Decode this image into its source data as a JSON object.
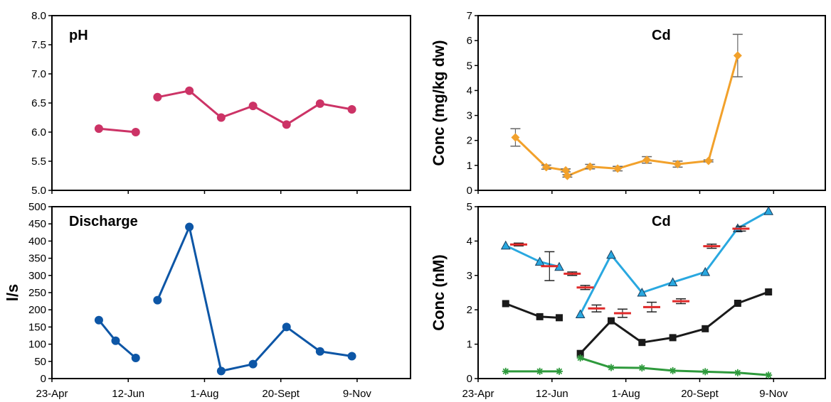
{
  "x_ticks": [
    "23-Apr",
    "12-Jun",
    "1-Aug",
    "20-Sept",
    "9-Nov"
  ],
  "chart_data": [
    {
      "id": "ph",
      "type": "line",
      "title": "pH",
      "xlabel": "",
      "ylabel": "",
      "ylim": [
        5.0,
        8.0
      ],
      "yticks": [
        "5.0",
        "5.5",
        "6.0",
        "6.5",
        "7.0",
        "7.5",
        "8.0"
      ],
      "x_date_range": [
        "2000-04-23",
        "2000-11-23"
      ],
      "grid": false,
      "series": [
        {
          "color": "#cc3366",
          "marker": "circle",
          "segments": [
            [
              [
                "2000-05-21",
                6.06
              ],
              [
                "2000-06-12",
                6.0
              ]
            ],
            [
              [
                "2000-06-25",
                6.6
              ],
              [
                "2000-07-14",
                6.71
              ],
              [
                "2000-08-02",
                6.25
              ],
              [
                "2000-08-21",
                6.45
              ],
              [
                "2000-09-10",
                6.13
              ],
              [
                "2000-09-30",
                6.49
              ],
              [
                "2000-10-19",
                6.39
              ]
            ]
          ]
        }
      ]
    },
    {
      "id": "discharge",
      "type": "line",
      "title": "Discharge",
      "xlabel": "",
      "ylabel": "l/s",
      "ylim": [
        0,
        500
      ],
      "yticks": [
        "0",
        "50",
        "100",
        "150",
        "200",
        "250",
        "300",
        "350",
        "400",
        "450",
        "500"
      ],
      "x_date_range": [
        "2000-04-23",
        "2000-11-23"
      ],
      "grid": false,
      "series": [
        {
          "color": "#0d56a6",
          "marker": "circle",
          "segments": [
            [
              [
                "2000-05-21",
                170
              ],
              [
                "2000-05-31",
                110
              ],
              [
                "2000-06-12",
                60
              ]
            ],
            [
              [
                "2000-06-25",
                228
              ],
              [
                "2000-07-14",
                441
              ],
              [
                "2000-08-02",
                22
              ],
              [
                "2000-08-21",
                42
              ],
              [
                "2000-09-10",
                150
              ],
              [
                "2000-09-30",
                79
              ],
              [
                "2000-10-19",
                65
              ]
            ]
          ]
        }
      ]
    },
    {
      "id": "cd-solid",
      "type": "line",
      "title": "Cd",
      "xlabel": "",
      "ylabel": "Conc (mg/kg dw)",
      "ylim": [
        0,
        7
      ],
      "yticks": [
        "0",
        "1",
        "2",
        "3",
        "4",
        "5",
        "6",
        "7"
      ],
      "x_date_range": [
        "2000-04-23",
        "2000-11-23"
      ],
      "grid": false,
      "series": [
        {
          "color": "#f2a12b",
          "marker": "diamond",
          "segments": [
            [
              [
                "2000-05-16",
                2.12,
                0.35
              ],
              [
                "2000-06-04",
                0.93,
                0.08
              ],
              [
                "2000-06-16",
                0.8,
                0.06
              ],
              [
                "2000-06-17",
                0.58,
                0.05
              ],
              [
                "2000-07-01",
                0.95,
                0.09
              ],
              [
                "2000-07-18",
                0.87,
                0.09
              ],
              [
                "2000-08-05",
                1.22,
                0.13
              ],
              [
                "2000-08-24",
                1.05,
                0.12
              ],
              [
                "2000-09-12",
                1.18,
                0.04
              ],
              [
                "2000-09-30",
                5.4,
                0.85
              ]
            ]
          ]
        }
      ]
    },
    {
      "id": "cd-dissolved",
      "type": "line",
      "title": "Cd",
      "xlabel": "",
      "ylabel": "Conc (nM)",
      "ylim": [
        0,
        5
      ],
      "yticks": [
        "0",
        "1",
        "2",
        "3",
        "4",
        "5"
      ],
      "x_date_range": [
        "2000-04-23",
        "2000-11-23"
      ],
      "grid": false,
      "series": [
        {
          "color": "#29a8e0",
          "marker": "triangle",
          "segments": [
            [
              [
                "2000-05-10",
                3.87
              ],
              [
                "2000-05-31",
                3.4
              ],
              [
                "2000-06-12",
                3.25
              ]
            ],
            [
              [
                "2000-06-25",
                1.87
              ],
              [
                "2000-07-14",
                3.6
              ],
              [
                "2000-08-02",
                2.5
              ],
              [
                "2000-08-21",
                2.8
              ],
              [
                "2000-09-10",
                3.1
              ],
              [
                "2000-09-30",
                4.37
              ],
              [
                "2000-10-19",
                4.87
              ]
            ]
          ]
        },
        {
          "color": "#1a1a1a",
          "marker": "square",
          "segments": [
            [
              [
                "2000-05-10",
                2.18
              ],
              [
                "2000-05-31",
                1.8
              ],
              [
                "2000-06-12",
                1.77
              ]
            ],
            [
              [
                "2000-06-25",
                0.73
              ],
              [
                "2000-07-14",
                1.68
              ],
              [
                "2000-08-02",
                1.05
              ],
              [
                "2000-08-21",
                1.19
              ],
              [
                "2000-09-10",
                1.45
              ],
              [
                "2000-09-30",
                2.19
              ],
              [
                "2000-10-19",
                2.52
              ]
            ]
          ]
        },
        {
          "color": "#2e9a3c",
          "marker": "star",
          "segments": [
            [
              [
                "2000-05-10",
                0.21
              ],
              [
                "2000-05-31",
                0.21
              ],
              [
                "2000-06-12",
                0.21
              ]
            ],
            [
              [
                "2000-06-25",
                0.6
              ],
              [
                "2000-07-14",
                0.32
              ],
              [
                "2000-08-02",
                0.31
              ],
              [
                "2000-08-21",
                0.23
              ],
              [
                "2000-09-10",
                0.2
              ],
              [
                "2000-09-30",
                0.17
              ],
              [
                "2000-10-19",
                0.1
              ]
            ]
          ]
        }
      ],
      "bars": {
        "color": "#e02a2a",
        "points": [
          [
            "2000-05-18",
            3.9,
            0.04
          ],
          [
            "2000-06-06",
            3.27,
            0.42
          ],
          [
            "2000-06-20",
            3.05,
            0.05
          ],
          [
            "2000-06-28",
            2.65,
            0.06
          ],
          [
            "2000-07-05",
            2.04,
            0.1
          ],
          [
            "2000-07-21",
            1.9,
            0.12
          ],
          [
            "2000-08-08",
            2.08,
            0.14
          ],
          [
            "2000-08-26",
            2.25,
            0.07
          ],
          [
            "2000-09-14",
            3.85,
            0.06
          ],
          [
            "2000-10-02",
            4.36,
            0.07
          ]
        ]
      }
    }
  ]
}
